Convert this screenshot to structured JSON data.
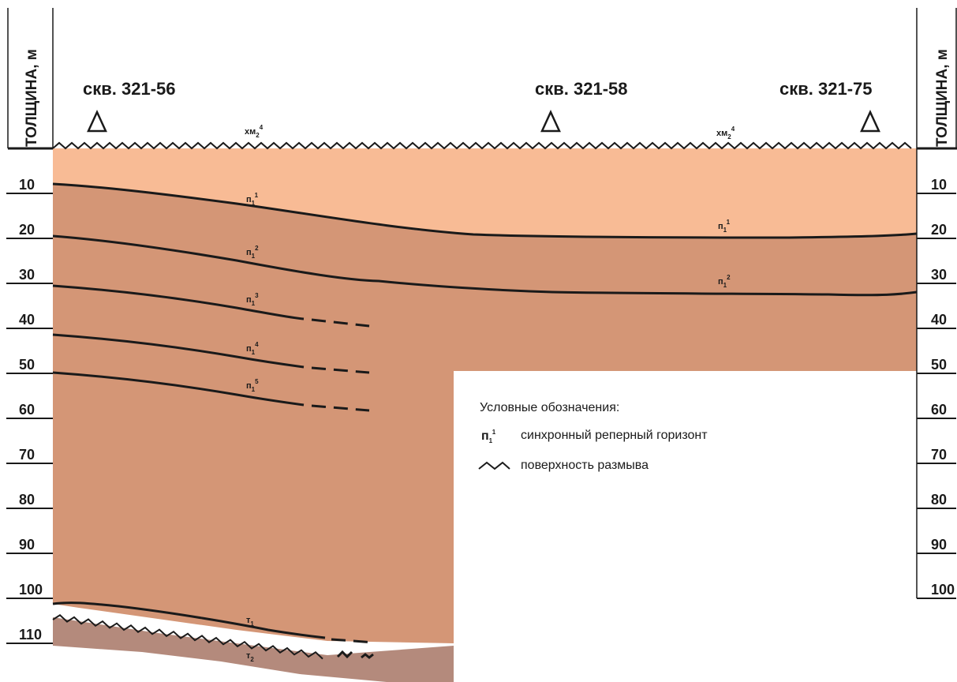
{
  "axis": {
    "left_title": "ТОЛЩИНА, м",
    "right_title": "ТОЛЩИНА, м",
    "left_ticks": [
      "10",
      "20",
      "30",
      "40",
      "50",
      "60",
      "70",
      "80",
      "90",
      "100",
      "110"
    ],
    "right_ticks": [
      "10",
      "20",
      "30",
      "40",
      "50",
      "60",
      "70",
      "80",
      "90",
      "100"
    ]
  },
  "wells": [
    {
      "label": "скв. 321-56"
    },
    {
      "label": "скв. 321-58"
    },
    {
      "label": "скв. 321-75"
    }
  ],
  "horizons": {
    "top_left": {
      "main": "хм",
      "sub": "2",
      "sup": "4"
    },
    "top_right": {
      "main": "хм",
      "sub": "2",
      "sup": "4"
    },
    "p1_1_left": {
      "main": "п",
      "sub": "1",
      "sup": "1"
    },
    "p1_1_right": {
      "main": "п",
      "sub": "1",
      "sup": "1"
    },
    "p1_2_left": {
      "main": "п",
      "sub": "1",
      "sup": "2"
    },
    "p1_2_right": {
      "main": "п",
      "sub": "1",
      "sup": "2"
    },
    "p1_3": {
      "main": "п",
      "sub": "1",
      "sup": "3"
    },
    "p1_4": {
      "main": "п",
      "sub": "1",
      "sup": "4"
    },
    "p1_5": {
      "main": "п",
      "sub": "1",
      "sup": "5"
    },
    "t1": {
      "main": "т",
      "sub": "1"
    },
    "t2": {
      "main": "т",
      "sub": "2"
    }
  },
  "legend": {
    "title": "Условные обозначения:",
    "item1_symbol": {
      "main": "п",
      "sub": "1",
      "sup": "1"
    },
    "item1_text": "синхронный реперный горизонт",
    "item2_text": "поверхность размыва"
  },
  "colors": {
    "upper_layer": "#f8bb95",
    "middle_layer": "#d49676",
    "lower_layer": "#b48a7c",
    "line": "#1a1a1a"
  }
}
